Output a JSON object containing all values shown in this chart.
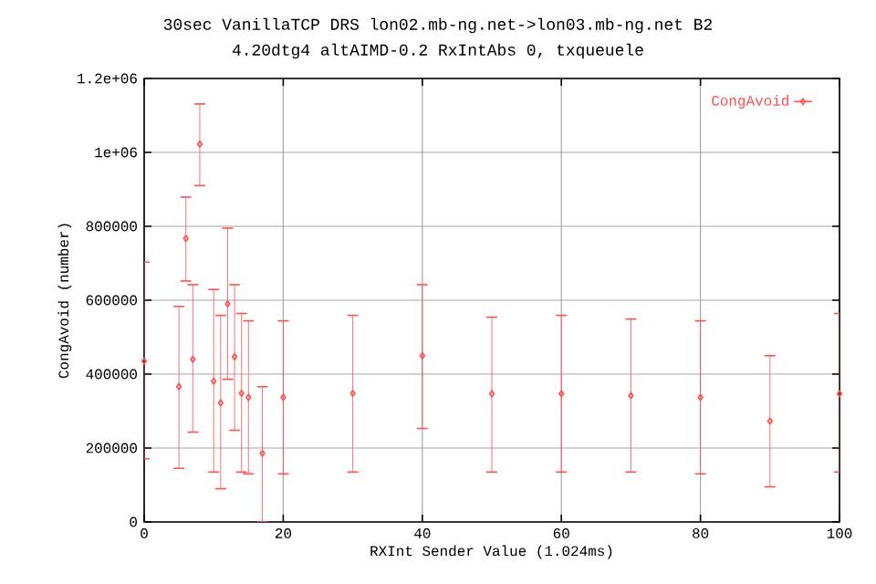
{
  "chart_data": {
    "type": "scatter",
    "title": "30sec VanillaTCP DRS lon02.mb-ng.net->lon03.mb-ng.net B2",
    "subtitle": "4.20dtg4 altAIMD-0.2 RxIntAbs 0, txqueuele",
    "xlabel": "RXInt Sender Value (1.024ms)",
    "ylabel": "CongAvoid (number)",
    "x": [
      0,
      5,
      6,
      7,
      8,
      10,
      11,
      12,
      13,
      14,
      15,
      17,
      20,
      30,
      40,
      50,
      60,
      70,
      80,
      90,
      100
    ],
    "series": [
      {
        "name": "CongAvoid",
        "color": "#ff5050",
        "values": [
          435000,
          366000,
          767000,
          440000,
          1022000,
          381000,
          322000,
          590000,
          447000,
          348000,
          337000,
          186000,
          337000,
          348000,
          450000,
          347000,
          347000,
          342000,
          337000,
          273000,
          347000
        ],
        "errors": [
          [
            171000,
            703000
          ],
          [
            145000,
            583000
          ],
          [
            652000,
            879000
          ],
          [
            243000,
            642000
          ],
          [
            910000,
            1131000
          ],
          [
            135000,
            629000
          ],
          [
            90000,
            559000
          ],
          [
            386000,
            795000
          ],
          [
            248000,
            642000
          ],
          [
            135000,
            564000
          ],
          [
            130000,
            544000
          ],
          [
            0,
            366000
          ],
          [
            130000,
            544000
          ],
          [
            135000,
            559000
          ],
          [
            253000,
            642000
          ],
          [
            135000,
            554000
          ],
          [
            135000,
            559000
          ],
          [
            135000,
            549000
          ],
          [
            130000,
            544000
          ],
          [
            95000,
            450000
          ],
          [
            135000,
            564000
          ]
        ]
      }
    ],
    "xlim": [
      0,
      100
    ],
    "xticks": [
      0,
      20,
      40,
      60,
      80,
      100
    ],
    "ylim": [
      0,
      1200000
    ],
    "yticks": [
      0,
      200000,
      400000,
      600000,
      800000,
      {
        "value": 1000000,
        "label": "1e+06"
      },
      {
        "value": 1200000,
        "label": "1.2e+06"
      }
    ],
    "grid": true,
    "legend": "top right",
    "marker": "diamond"
  }
}
